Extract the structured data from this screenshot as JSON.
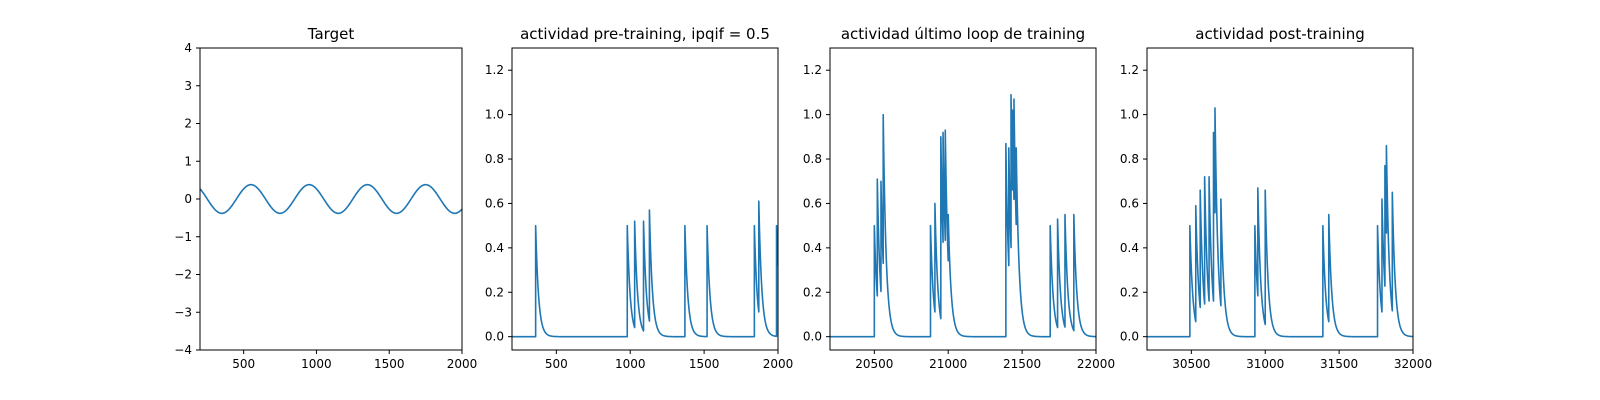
{
  "chart_data": [
    {
      "type": "line",
      "title": "Target",
      "xlabel": "",
      "ylabel": "",
      "xlim": [
        200,
        2000
      ],
      "ylim": [
        -4,
        4
      ],
      "xticks": [
        500,
        1000,
        1500,
        2000
      ],
      "yticks": [
        -4,
        -3,
        -2,
        -1,
        0,
        1,
        2,
        3,
        4
      ],
      "series": [
        {
          "kind": "sine",
          "amplitude": 0.38,
          "period": 400,
          "x_start": 200,
          "x_end": 2000,
          "step": 5,
          "peak_x": 550,
          "color": "#1f77b4"
        }
      ]
    },
    {
      "type": "line",
      "title": "actividad pre-training, ipqif = 0.5",
      "xlabel": "",
      "ylabel": "",
      "xlim": [
        200,
        2000
      ],
      "ylim": [
        -0.06,
        1.3
      ],
      "xticks": [
        500,
        1000,
        1500,
        2000
      ],
      "yticks": [
        0.0,
        0.2,
        0.4,
        0.6,
        0.8,
        1.0,
        1.2
      ],
      "series": [
        {
          "kind": "spikes",
          "decay": 20,
          "x_start": 200,
          "x_end": 2000,
          "color": "#1f77b4",
          "spikes": [
            [
              360,
              0.5
            ],
            [
              980,
              0.5
            ],
            [
              1030,
              0.52
            ],
            [
              1090,
              0.52
            ],
            [
              1130,
              0.57
            ],
            [
              1370,
              0.5
            ],
            [
              1520,
              0.5
            ],
            [
              1840,
              0.5
            ],
            [
              1870,
              0.61
            ],
            [
              1990,
              0.5
            ]
          ]
        }
      ]
    },
    {
      "type": "line",
      "title": "actividad último loop de training",
      "xlabel": "",
      "ylabel": "",
      "xlim": [
        20200,
        22000
      ],
      "ylim": [
        -0.06,
        1.3
      ],
      "xticks": [
        20500,
        21000,
        21500,
        22000
      ],
      "yticks": [
        0.0,
        0.2,
        0.4,
        0.6,
        0.8,
        1.0,
        1.2
      ],
      "series": [
        {
          "kind": "spikes",
          "decay": 20,
          "x_start": 20200,
          "x_end": 22000,
          "color": "#1f77b4",
          "spikes": [
            [
              20500,
              0.5
            ],
            [
              20520,
              0.71
            ],
            [
              20545,
              0.7
            ],
            [
              20560,
              1.0
            ],
            [
              20880,
              0.5
            ],
            [
              20910,
              0.6
            ],
            [
              20950,
              0.9
            ],
            [
              20965,
              0.92
            ],
            [
              20980,
              0.93
            ],
            [
              21000,
              0.55
            ],
            [
              21390,
              0.87
            ],
            [
              21410,
              0.85
            ],
            [
              21425,
              1.09
            ],
            [
              21435,
              1.02
            ],
            [
              21445,
              1.07
            ],
            [
              21460,
              0.85
            ],
            [
              21690,
              0.5
            ],
            [
              21740,
              0.53
            ],
            [
              21790,
              0.55
            ],
            [
              21850,
              0.55
            ]
          ]
        }
      ]
    },
    {
      "type": "line",
      "title": "actividad post-training",
      "xlabel": "",
      "ylabel": "",
      "xlim": [
        30200,
        32000
      ],
      "ylim": [
        -0.06,
        1.3
      ],
      "xticks": [
        30500,
        31000,
        31500,
        32000
      ],
      "yticks": [
        0.0,
        0.2,
        0.4,
        0.6,
        0.8,
        1.0,
        1.2
      ],
      "series": [
        {
          "kind": "spikes",
          "decay": 20,
          "x_start": 30200,
          "x_end": 32000,
          "color": "#1f77b4",
          "spikes": [
            [
              30490,
              0.5
            ],
            [
              30530,
              0.59
            ],
            [
              30560,
              0.66
            ],
            [
              30590,
              0.72
            ],
            [
              30620,
              0.72
            ],
            [
              30650,
              0.92
            ],
            [
              30660,
              1.03
            ],
            [
              30700,
              0.62
            ],
            [
              30930,
              0.5
            ],
            [
              30950,
              0.67
            ],
            [
              31000,
              0.66
            ],
            [
              31390,
              0.5
            ],
            [
              31430,
              0.55
            ],
            [
              31760,
              0.5
            ],
            [
              31790,
              0.62
            ],
            [
              31810,
              0.77
            ],
            [
              31820,
              0.86
            ],
            [
              31860,
              0.65
            ]
          ]
        }
      ]
    }
  ]
}
